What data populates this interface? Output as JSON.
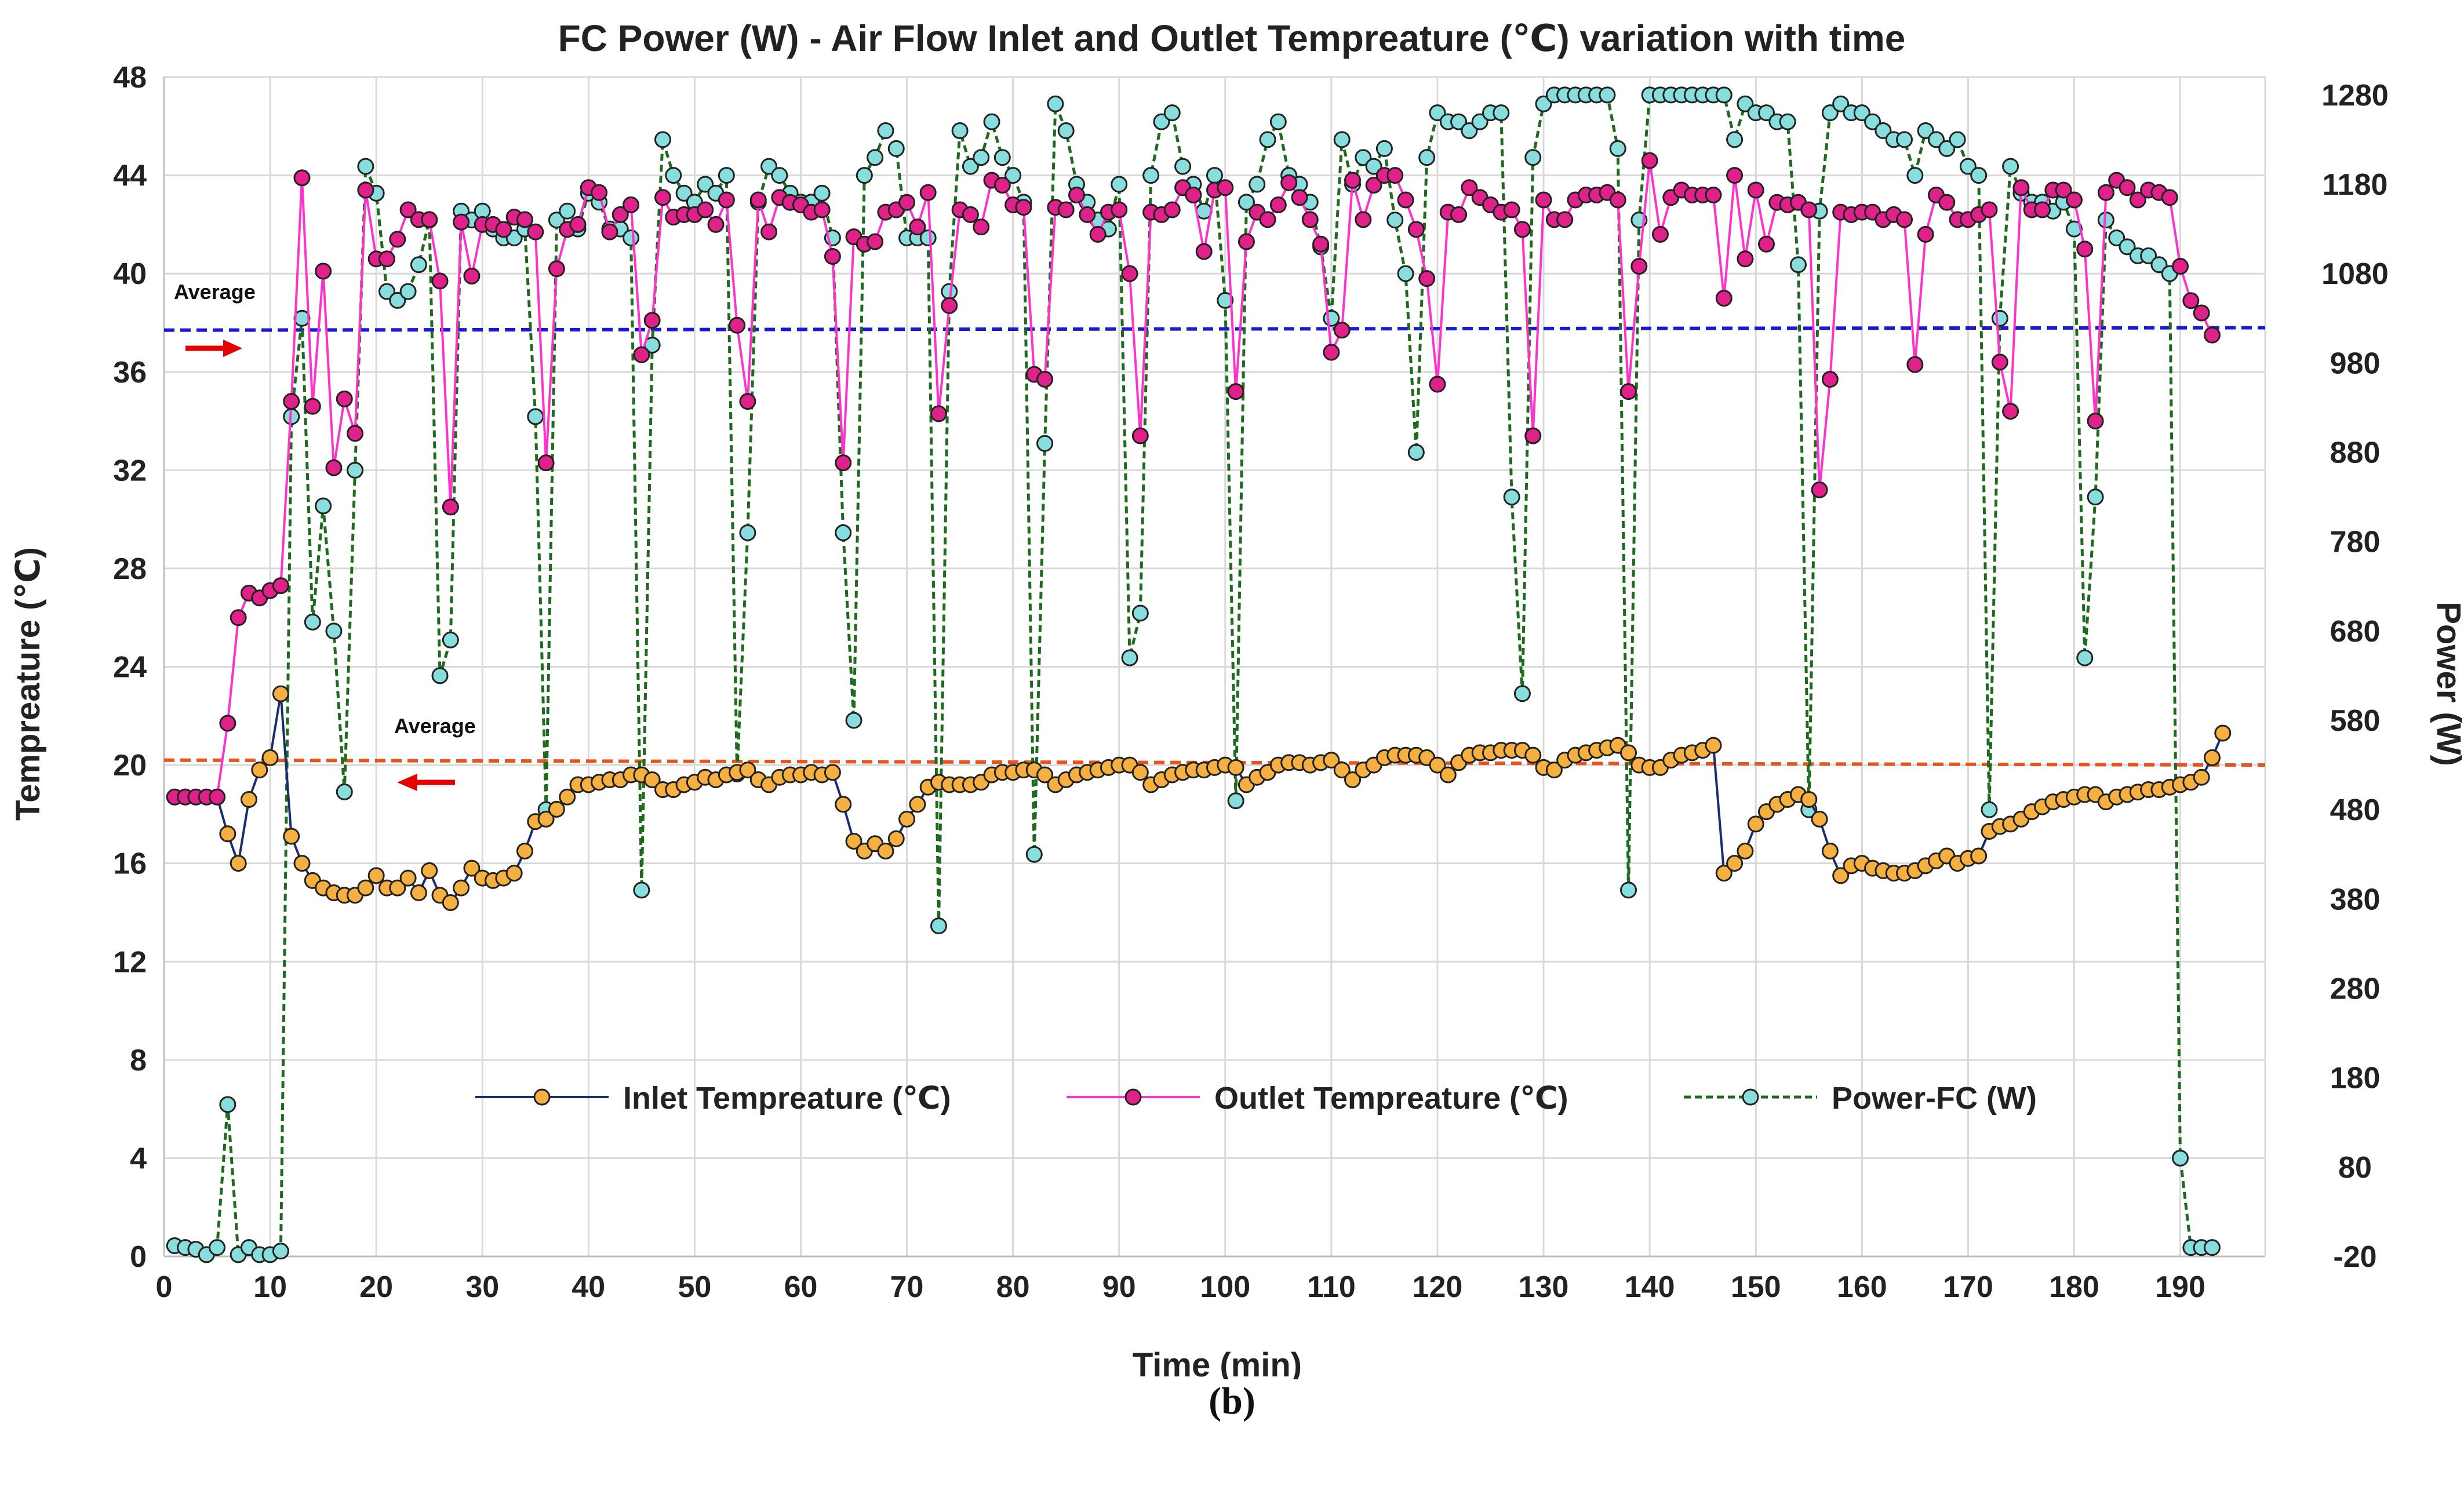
{
  "caption": "(b)",
  "chart_data": {
    "type": "line",
    "title": "FC Power (W) - Air Flow Inlet and Outlet Tempreature (℃) variation with time",
    "xlabel": "Time (min)",
    "ylabel": "Tempreature (℃)",
    "y2label": "Power (W)",
    "xlim": [
      0,
      198
    ],
    "ylim": [
      0,
      48
    ],
    "y2lim": [
      -20,
      1300
    ],
    "xticks": [
      0,
      10,
      20,
      30,
      40,
      50,
      60,
      70,
      80,
      90,
      100,
      110,
      120,
      130,
      140,
      150,
      160,
      170,
      180,
      190
    ],
    "yticks": [
      0,
      4,
      8,
      12,
      16,
      20,
      24,
      28,
      32,
      36,
      40,
      44,
      48
    ],
    "y2ticks": [
      -20,
      80,
      180,
      280,
      380,
      480,
      580,
      680,
      780,
      880,
      980,
      1080,
      1180,
      1280
    ],
    "grid": true,
    "legend_position": "bottom-center",
    "annotations": [
      {
        "text": "Average",
        "refers_to": "outlet average (blue dashed)",
        "arrow": "right"
      },
      {
        "text": "Average",
        "refers_to": "inlet average (orange dashed)",
        "arrow": "left"
      }
    ],
    "reference_lines": [
      {
        "name": "Outlet average",
        "axis": "left",
        "y_start": 37.7,
        "y_end": 37.8,
        "color": "#1a1ad6",
        "style": "dashed"
      },
      {
        "name": "Inlet average",
        "axis": "left",
        "y_start": 20.2,
        "y_end": 20.0,
        "color": "#e8541a",
        "style": "dashed"
      }
    ],
    "series": [
      {
        "name": "Inlet Tempreature (℃)",
        "axis": "left",
        "line_color": "#1a2e6e",
        "marker_color": "#f5b041",
        "dash": false,
        "x_start": 1,
        "values": [
          18.7,
          18.7,
          18.7,
          18.7,
          18.7,
          17.2,
          16.0,
          18.6,
          19.8,
          20.3,
          22.9,
          17.1,
          16.0,
          15.3,
          15.0,
          14.8,
          14.7,
          14.7,
          15.0,
          15.5,
          15.0,
          15.0,
          15.4,
          14.8,
          15.7,
          14.7,
          14.4,
          15.0,
          15.8,
          15.4,
          15.3,
          15.4,
          15.6,
          16.5,
          17.7,
          17.8,
          18.2,
          18.7,
          19.2,
          19.2,
          19.3,
          19.4,
          19.4,
          19.6,
          19.6,
          19.4,
          19.0,
          19.0,
          19.2,
          19.3,
          19.5,
          19.4,
          19.6,
          19.7,
          19.8,
          19.4,
          19.2,
          19.5,
          19.6,
          19.6,
          19.7,
          19.6,
          19.7,
          18.4,
          16.9,
          16.5,
          16.8,
          16.5,
          17.0,
          17.8,
          18.4,
          19.1,
          19.3,
          19.2,
          19.2,
          19.2,
          19.3,
          19.6,
          19.7,
          19.7,
          19.8,
          19.8,
          19.6,
          19.2,
          19.4,
          19.6,
          19.7,
          19.8,
          19.9,
          20.0,
          20.0,
          19.7,
          19.2,
          19.4,
          19.6,
          19.7,
          19.8,
          19.8,
          19.9,
          20.0,
          19.9,
          19.2,
          19.5,
          19.7,
          20.0,
          20.1,
          20.1,
          20.0,
          20.1,
          20.2,
          19.8,
          19.4,
          19.8,
          20.0,
          20.3,
          20.4,
          20.4,
          20.4,
          20.3,
          20.0,
          19.6,
          20.1,
          20.4,
          20.5,
          20.5,
          20.6,
          20.6,
          20.6,
          20.4,
          19.9,
          19.8,
          20.2,
          20.4,
          20.5,
          20.6,
          20.7,
          20.8,
          20.5,
          20.0,
          19.9,
          19.9,
          20.2,
          20.4,
          20.5,
          20.6,
          20.8,
          15.6,
          16.0,
          16.5,
          17.6,
          18.1,
          18.4,
          18.6,
          18.8,
          18.6,
          17.8,
          16.5,
          15.5,
          15.9,
          16.0,
          15.8,
          15.7,
          15.6,
          15.6,
          15.7,
          15.9,
          16.1,
          16.3,
          16.0,
          16.2,
          16.3,
          17.3,
          17.5,
          17.6,
          17.8,
          18.1,
          18.3,
          18.5,
          18.6,
          18.7,
          18.8,
          18.8,
          18.5,
          18.7,
          18.8,
          18.9,
          19.0,
          19.0,
          19.1,
          19.2,
          19.3,
          19.5,
          20.3,
          21.3
        ]
      },
      {
        "name": "Outlet Tempreature (℃)",
        "axis": "left",
        "line_color": "#ff33cc",
        "marker_color": "#e0218a",
        "dash": false,
        "x_start": 1,
        "values": [
          18.7,
          18.7,
          18.7,
          18.7,
          18.7,
          21.7,
          26.0,
          27.0,
          26.8,
          27.1,
          27.3,
          34.8,
          43.9,
          34.6,
          40.1,
          32.1,
          34.9,
          33.5,
          43.4,
          40.6,
          40.6,
          41.4,
          42.6,
          42.2,
          42.2,
          39.7,
          30.5,
          42.1,
          39.9,
          42.0,
          42.0,
          41.8,
          42.3,
          42.2,
          41.7,
          32.3,
          40.2,
          41.8,
          42.0,
          43.5,
          43.3,
          41.7,
          42.4,
          42.8,
          36.7,
          38.1,
          43.1,
          42.3,
          42.4,
          42.4,
          42.6,
          42.0,
          43.0,
          37.9,
          34.8,
          43.0,
          41.7,
          43.1,
          42.9,
          42.8,
          42.5,
          42.6,
          40.7,
          32.3,
          41.5,
          41.2,
          41.3,
          42.5,
          42.6,
          42.9,
          41.9,
          43.3,
          34.3,
          38.7,
          42.6,
          42.4,
          41.9,
          43.8,
          43.6,
          42.8,
          42.7,
          35.9,
          35.7,
          42.7,
          42.6,
          43.2,
          42.4,
          41.6,
          42.5,
          42.6,
          40.0,
          33.4,
          42.5,
          42.4,
          42.6,
          43.5,
          43.2,
          40.9,
          43.4,
          43.5,
          35.2,
          41.3,
          42.5,
          42.2,
          42.8,
          43.7,
          43.1,
          42.2,
          41.2,
          36.8,
          37.7,
          43.8,
          42.2,
          43.6,
          44.0,
          44.0,
          43.0,
          41.8,
          39.8,
          35.5,
          42.5,
          42.4,
          43.5,
          43.1,
          42.8,
          42.5,
          42.6,
          41.8,
          33.4,
          43.0,
          42.2,
          42.2,
          43.0,
          43.2,
          43.2,
          43.3,
          43.0,
          35.2,
          40.3,
          44.6,
          41.6,
          43.1,
          43.4,
          43.2,
          43.2,
          43.2,
          39.0,
          44.0,
          40.6,
          43.4,
          41.2,
          42.9,
          42.8,
          42.9,
          42.6,
          31.2,
          35.7,
          42.5,
          42.4,
          42.5,
          42.5,
          42.2,
          42.4,
          42.2,
          36.3,
          41.6,
          43.2,
          42.9,
          42.2,
          42.2,
          42.4,
          42.6,
          36.4,
          34.4,
          43.5,
          42.6,
          42.6,
          43.4,
          43.4,
          43.0,
          41.0,
          34.0,
          43.3,
          43.8,
          43.5,
          43.0,
          43.4,
          43.3,
          43.1,
          40.3,
          38.9,
          38.4,
          37.5
        ]
      },
      {
        "name": "Power-FC (W)",
        "axis": "right",
        "line_color": "#1e6b1e",
        "marker_color": "#88dddd",
        "dash": true,
        "x_start": 1,
        "values": [
          -8,
          -10,
          -12,
          -18,
          -10,
          150,
          -18,
          -10,
          -18,
          -18,
          -14,
          920,
          1030,
          690,
          820,
          680,
          500,
          860,
          1200,
          1170,
          1060,
          1050,
          1060,
          1090,
          1140,
          630,
          670,
          1150,
          1140,
          1150,
          1130,
          1120,
          1120,
          1130,
          920,
          480,
          1140,
          1150,
          1130,
          1170,
          1160,
          1130,
          1130,
          1120,
          390,
          1000,
          1230,
          1190,
          1170,
          1160,
          1180,
          1170,
          1190,
          520,
          790,
          1160,
          1200,
          1190,
          1170,
          1160,
          1160,
          1170,
          1120,
          790,
          580,
          1190,
          1210,
          1240,
          1220,
          1120,
          1120,
          1120,
          350,
          1060,
          1240,
          1200,
          1210,
          1250,
          1210,
          1190,
          1160,
          430,
          890,
          1270,
          1240,
          1180,
          1160,
          1140,
          1130,
          1180,
          650,
          700,
          1190,
          1250,
          1260,
          1200,
          1180,
          1150,
          1190,
          1050,
          490,
          1160,
          1180,
          1230,
          1250,
          1190,
          1180,
          1160,
          1110,
          1030,
          1230,
          1180,
          1210,
          1200,
          1220,
          1140,
          1080,
          880,
          1210,
          1260,
          1250,
          1250,
          1240,
          1250,
          1260,
          1260,
          830,
          610,
          1210,
          1270,
          1280,
          1280,
          1280,
          1280,
          1280,
          1280,
          1220,
          390,
          1140,
          1280,
          1280,
          1280,
          1280,
          1280,
          1280,
          1280,
          1280,
          1230,
          1270,
          1260,
          1260,
          1250,
          1250,
          1090,
          480,
          1150,
          1260,
          1270,
          1260,
          1260,
          1250,
          1240,
          1230,
          1230,
          1190,
          1240,
          1230,
          1220,
          1230,
          1200,
          1190,
          480,
          1030,
          1200,
          1170,
          1160,
          1160,
          1150,
          1160,
          1130,
          650,
          830,
          1140,
          1120,
          1110,
          1100,
          1100,
          1090,
          1080,
          90,
          -10,
          -10,
          -10
        ]
      }
    ]
  }
}
